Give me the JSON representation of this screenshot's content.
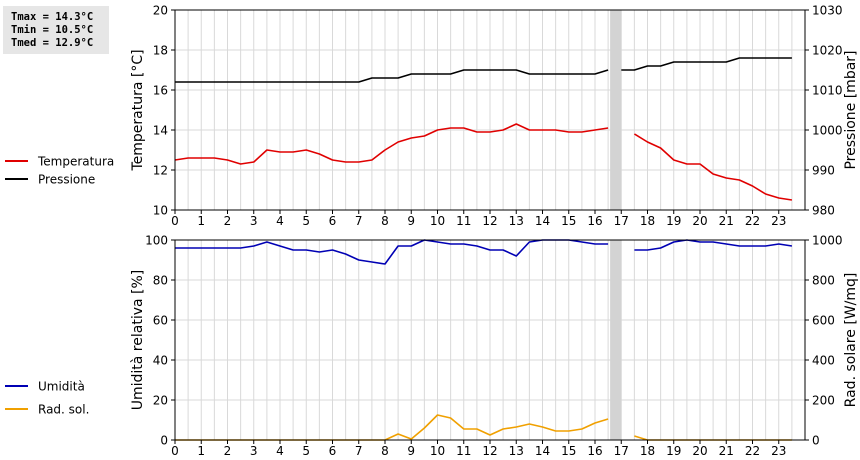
{
  "stats": [
    "Tmax = 14.3°C",
    "Tmin = 10.5°C",
    "Tmed = 12.9°C"
  ],
  "colors": {
    "temperature": "#e00000",
    "pressure": "#000000",
    "humidity": "#0000b4",
    "solar": "#f0a000",
    "gap": "#d3d3d3",
    "grid": "#d9d9d9"
  },
  "chart_data": [
    {
      "type": "line",
      "x_ticks": [
        0,
        1,
        2,
        3,
        4,
        5,
        6,
        7,
        8,
        9,
        10,
        11,
        12,
        13,
        14,
        15,
        16,
        17,
        18,
        19,
        20,
        21,
        22,
        23
      ],
      "xlim": [
        0,
        24
      ],
      "ylabel": "Temperatura [°C]",
      "ylim": [
        10,
        20
      ],
      "y_ticks": [
        10,
        12,
        14,
        16,
        18,
        20
      ],
      "y2label": "Pressione [mbar]",
      "y2lim": [
        980,
        1030
      ],
      "y2_ticks": [
        980,
        990,
        1000,
        1010,
        1020,
        1030
      ],
      "gap": [
        16.5,
        17.0
      ],
      "series": [
        {
          "name": "Temperatura",
          "axis": "left",
          "color": "#e00000",
          "segments": [
            [
              [
                0,
                12.5
              ],
              [
                0.5,
                12.6
              ],
              [
                1,
                12.6
              ],
              [
                1.5,
                12.6
              ],
              [
                2,
                12.5
              ],
              [
                2.5,
                12.3
              ],
              [
                3,
                12.4
              ],
              [
                3.5,
                13.0
              ],
              [
                4,
                12.9
              ],
              [
                4.5,
                12.9
              ],
              [
                5,
                13.0
              ],
              [
                5.5,
                12.8
              ],
              [
                6,
                12.5
              ],
              [
                6.5,
                12.4
              ],
              [
                7,
                12.4
              ],
              [
                7.5,
                12.5
              ],
              [
                8,
                13.0
              ],
              [
                8.5,
                13.4
              ],
              [
                9,
                13.6
              ],
              [
                9.5,
                13.7
              ],
              [
                10,
                14.0
              ],
              [
                10.5,
                14.1
              ],
              [
                11,
                14.1
              ],
              [
                11.5,
                13.9
              ],
              [
                12,
                13.9
              ],
              [
                12.5,
                14.0
              ],
              [
                13,
                14.3
              ],
              [
                13.5,
                14.0
              ],
              [
                14,
                14.0
              ],
              [
                14.5,
                14.0
              ],
              [
                15,
                13.9
              ],
              [
                15.5,
                13.9
              ],
              [
                16,
                14.0
              ],
              [
                16.5,
                14.1
              ]
            ],
            [
              [
                17.5,
                13.8
              ],
              [
                18,
                13.4
              ],
              [
                18.5,
                13.1
              ],
              [
                19,
                12.5
              ],
              [
                19.5,
                12.3
              ],
              [
                20,
                12.3
              ],
              [
                20.5,
                11.8
              ],
              [
                21,
                11.6
              ],
              [
                21.5,
                11.5
              ],
              [
                22,
                11.2
              ],
              [
                22.5,
                10.8
              ],
              [
                23,
                10.6
              ],
              [
                23.5,
                10.5
              ]
            ]
          ]
        },
        {
          "name": "Pressione",
          "axis": "right",
          "color": "#000000",
          "segments": [
            [
              [
                0,
                1012
              ],
              [
                1,
                1012
              ],
              [
                2,
                1012
              ],
              [
                3,
                1012
              ],
              [
                4,
                1012
              ],
              [
                5,
                1012
              ],
              [
                6,
                1012
              ],
              [
                7,
                1012
              ],
              [
                7.5,
                1013
              ],
              [
                8,
                1013
              ],
              [
                8.5,
                1013
              ],
              [
                9,
                1014
              ],
              [
                9.5,
                1014
              ],
              [
                10,
                1014
              ],
              [
                10.5,
                1014
              ],
              [
                11,
                1015
              ],
              [
                11.5,
                1015
              ],
              [
                12,
                1015
              ],
              [
                12.5,
                1015
              ],
              [
                13,
                1015
              ],
              [
                13.5,
                1014
              ],
              [
                14,
                1014
              ],
              [
                14.5,
                1014
              ],
              [
                15,
                1014
              ],
              [
                15.5,
                1014
              ],
              [
                16,
                1014
              ],
              [
                16.5,
                1015
              ]
            ],
            [
              [
                17,
                1015
              ],
              [
                17.5,
                1015
              ],
              [
                18,
                1016
              ],
              [
                18.5,
                1016
              ],
              [
                19,
                1017
              ],
              [
                19.5,
                1017
              ],
              [
                20,
                1017
              ],
              [
                20.5,
                1017
              ],
              [
                21,
                1017
              ],
              [
                21.5,
                1018
              ],
              [
                22,
                1018
              ],
              [
                22.5,
                1018
              ],
              [
                23,
                1018
              ],
              [
                23.5,
                1018
              ]
            ]
          ]
        }
      ]
    },
    {
      "type": "line",
      "x_ticks": [
        0,
        1,
        2,
        3,
        4,
        5,
        6,
        7,
        8,
        9,
        10,
        11,
        12,
        13,
        14,
        15,
        16,
        17,
        18,
        19,
        20,
        21,
        22,
        23
      ],
      "xlim": [
        0,
        24
      ],
      "ylabel": "Umidità relativa [%]",
      "ylim": [
        0,
        100
      ],
      "y_ticks": [
        0,
        20,
        40,
        60,
        80,
        100
      ],
      "y2label": "Rad. solare [W/mq]",
      "y2lim": [
        0,
        1000
      ],
      "y2_ticks": [
        0,
        200,
        400,
        600,
        800,
        1000
      ],
      "gap": [
        16.5,
        17.0
      ],
      "series": [
        {
          "name": "Umidità",
          "axis": "left",
          "color": "#0000b4",
          "segments": [
            [
              [
                0,
                96
              ],
              [
                0.5,
                96
              ],
              [
                1,
                96
              ],
              [
                1.5,
                96
              ],
              [
                2,
                96
              ],
              [
                2.5,
                96
              ],
              [
                3,
                97
              ],
              [
                3.5,
                99
              ],
              [
                4,
                97
              ],
              [
                4.5,
                95
              ],
              [
                5,
                95
              ],
              [
                5.5,
                94
              ],
              [
                6,
                95
              ],
              [
                6.5,
                93
              ],
              [
                7,
                90
              ],
              [
                7.5,
                89
              ],
              [
                8,
                88
              ],
              [
                8.5,
                97
              ],
              [
                9,
                97
              ],
              [
                9.5,
                100
              ],
              [
                10,
                99
              ],
              [
                10.5,
                98
              ],
              [
                11,
                98
              ],
              [
                11.5,
                97
              ],
              [
                12,
                95
              ],
              [
                12.5,
                95
              ],
              [
                13,
                92
              ],
              [
                13.5,
                99
              ],
              [
                14,
                100
              ],
              [
                14.5,
                100
              ],
              [
                15,
                100
              ],
              [
                15.5,
                99
              ],
              [
                16,
                98
              ],
              [
                16.5,
                98
              ]
            ],
            [
              [
                17.5,
                95
              ],
              [
                18,
                95
              ],
              [
                18.5,
                96
              ],
              [
                19,
                99
              ],
              [
                19.5,
                100
              ],
              [
                20,
                99
              ],
              [
                20.5,
                99
              ],
              [
                21,
                98
              ],
              [
                21.5,
                97
              ],
              [
                22,
                97
              ],
              [
                22.5,
                97
              ],
              [
                23,
                98
              ],
              [
                23.5,
                97
              ]
            ]
          ]
        },
        {
          "name": "Rad. sol.",
          "axis": "right",
          "color": "#f0a000",
          "segments": [
            [
              [
                0,
                0
              ],
              [
                1,
                0
              ],
              [
                2,
                0
              ],
              [
                3,
                0
              ],
              [
                4,
                0
              ],
              [
                5,
                0
              ],
              [
                6,
                0
              ],
              [
                7,
                0
              ],
              [
                8,
                0
              ],
              [
                8.5,
                30
              ],
              [
                9,
                5
              ],
              [
                9.5,
                60
              ],
              [
                10,
                125
              ],
              [
                10.5,
                110
              ],
              [
                11,
                55
              ],
              [
                11.5,
                55
              ],
              [
                12,
                25
              ],
              [
                12.5,
                55
              ],
              [
                13,
                65
              ],
              [
                13.5,
                80
              ],
              [
                14,
                65
              ],
              [
                14.5,
                45
              ],
              [
                15,
                45
              ],
              [
                15.5,
                55
              ],
              [
                16,
                85
              ],
              [
                16.5,
                105
              ]
            ],
            [
              [
                17.5,
                20
              ],
              [
                18,
                0
              ],
              [
                19,
                0
              ],
              [
                20,
                0
              ],
              [
                21,
                0
              ],
              [
                22,
                0
              ],
              [
                23,
                0
              ],
              [
                23.5,
                0
              ]
            ]
          ]
        }
      ]
    }
  ]
}
